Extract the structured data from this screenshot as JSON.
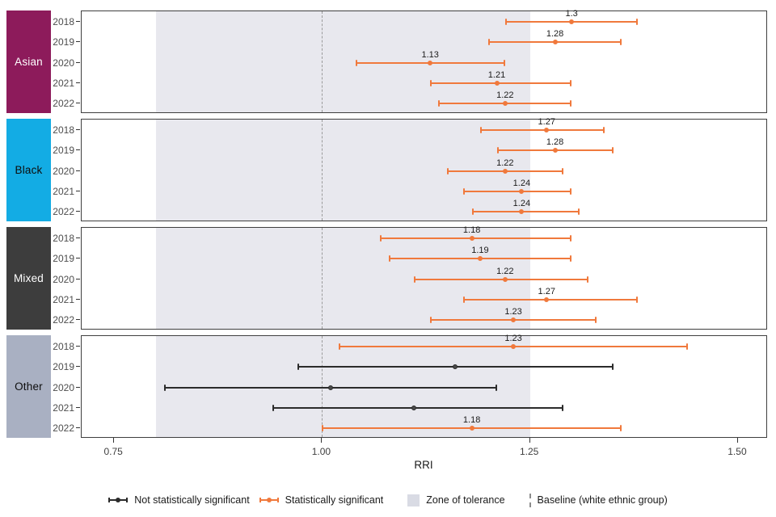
{
  "chart_data": {
    "type": "pointrange",
    "title": "",
    "xlabel": "RRI",
    "x_ticks": [
      {
        "label": "0.75",
        "value": 0.75
      },
      {
        "label": "1.00",
        "value": 1.0
      },
      {
        "label": "1.25",
        "value": 1.25
      },
      {
        "label": "1.50",
        "value": 1.5
      }
    ],
    "xlim": [
      0.711,
      1.536
    ],
    "baseline_value": 1.0,
    "zone_of_tolerance": [
      0.8,
      1.25
    ],
    "grid": "off",
    "panels": [
      {
        "group": "Asian",
        "strip_color": "#8d1b5b",
        "strip_text_color": "#ffffff",
        "rows": [
          {
            "year": "2018",
            "label": "1.3",
            "value": 1.3,
            "lo": 1.22,
            "hi": 1.38,
            "significant": true
          },
          {
            "year": "2019",
            "label": "1.28",
            "value": 1.28,
            "lo": 1.2,
            "hi": 1.36,
            "significant": true
          },
          {
            "year": "2020",
            "label": "1.13",
            "value": 1.13,
            "lo": 1.04,
            "hi": 1.22,
            "significant": true
          },
          {
            "year": "2021",
            "label": "1.21",
            "value": 1.21,
            "lo": 1.13,
            "hi": 1.3,
            "significant": true
          },
          {
            "year": "2022",
            "label": "1.22",
            "value": 1.22,
            "lo": 1.14,
            "hi": 1.3,
            "significant": true
          }
        ]
      },
      {
        "group": "Black",
        "strip_color": "#13ace4",
        "strip_text_color": "#0d0d0d",
        "rows": [
          {
            "year": "2018",
            "label": "1.27",
            "value": 1.27,
            "lo": 1.19,
            "hi": 1.34,
            "significant": true
          },
          {
            "year": "2019",
            "label": "1.28",
            "value": 1.28,
            "lo": 1.21,
            "hi": 1.35,
            "significant": true
          },
          {
            "year": "2020",
            "label": "1.22",
            "value": 1.22,
            "lo": 1.15,
            "hi": 1.29,
            "significant": true
          },
          {
            "year": "2021",
            "label": "1.24",
            "value": 1.24,
            "lo": 1.17,
            "hi": 1.3,
            "significant": true
          },
          {
            "year": "2022",
            "label": "1.24",
            "value": 1.24,
            "lo": 1.18,
            "hi": 1.31,
            "significant": true
          }
        ]
      },
      {
        "group": "Mixed",
        "strip_color": "#3d3d3d",
        "strip_text_color": "#ffffff",
        "rows": [
          {
            "year": "2018",
            "label": "1.18",
            "value": 1.18,
            "lo": 1.07,
            "hi": 1.3,
            "significant": true
          },
          {
            "year": "2019",
            "label": "1.19",
            "value": 1.19,
            "lo": 1.08,
            "hi": 1.3,
            "significant": true
          },
          {
            "year": "2020",
            "label": "1.22",
            "value": 1.22,
            "lo": 1.11,
            "hi": 1.32,
            "significant": true
          },
          {
            "year": "2021",
            "label": "1.27",
            "value": 1.27,
            "lo": 1.17,
            "hi": 1.38,
            "significant": true
          },
          {
            "year": "2022",
            "label": "1.23",
            "value": 1.23,
            "lo": 1.13,
            "hi": 1.33,
            "significant": true
          }
        ]
      },
      {
        "group": "Other",
        "strip_color": "#a9b0c2",
        "strip_text_color": "#0d0d0d",
        "rows": [
          {
            "year": "2018",
            "label": "1.23",
            "value": 1.23,
            "lo": 1.02,
            "hi": 1.44,
            "significant": true
          },
          {
            "year": "2019",
            "label": "",
            "value": 1.16,
            "lo": 0.97,
            "hi": 1.35,
            "significant": false
          },
          {
            "year": "2020",
            "label": "",
            "value": 1.01,
            "lo": 0.81,
            "hi": 1.21,
            "significant": false
          },
          {
            "year": "2021",
            "label": "",
            "value": 1.11,
            "lo": 0.94,
            "hi": 1.29,
            "significant": false
          },
          {
            "year": "2022",
            "label": "1.18",
            "value": 1.18,
            "lo": 1.0,
            "hi": 1.36,
            "significant": true
          }
        ]
      }
    ],
    "colors": {
      "significant": "#f0793c",
      "not_significant": "#2b2b2b",
      "not_significant_point": "#4a4a4a",
      "zone_fill": "#e8e8ee",
      "legend_swatch": "#d9dbe4",
      "baseline_dash": "#9a9a9a",
      "panel_border": "#3f3f3f"
    },
    "legend": [
      {
        "type": "pointrange",
        "color": "#2b2b2b",
        "label": "Not statistically significant"
      },
      {
        "type": "pointrange",
        "color": "#f0793c",
        "label": "Statistically significant"
      },
      {
        "type": "swatch",
        "color": "#d9dbe4",
        "label": "Zone of tolerance"
      },
      {
        "type": "dashed",
        "color": "#8c8c8c",
        "label": "Baseline (white ethnic group)"
      }
    ],
    "legend_position": "bottom"
  }
}
